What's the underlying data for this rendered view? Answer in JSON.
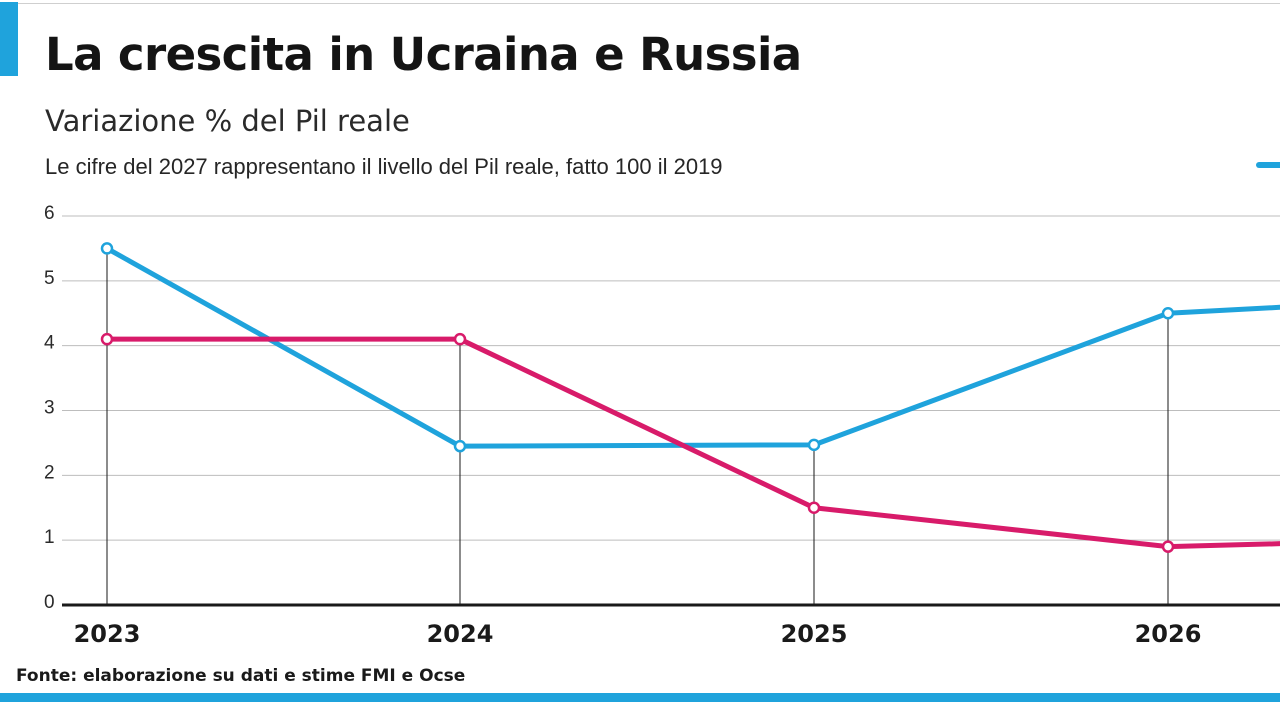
{
  "header": {
    "title": "La crescita in Ucraina e Russia",
    "subtitle": "Variazione % del Pil reale",
    "note": "Le cifre del 2027 rappresentano il livello del Pil reale, fatto 100 il 2019"
  },
  "footer": {
    "source": "Fonte: elaborazione su dati e stime FMI e Ocse"
  },
  "colors": {
    "accent": "#1fa3dc",
    "series_blue": "#1fa3dc",
    "series_magenta": "#d81b6a"
  },
  "chart_data": {
    "type": "line",
    "title": "La crescita in Ucraina e Russia",
    "subtitle": "Variazione % del Pil reale",
    "x": [
      "2023",
      "2024",
      "2025",
      "2026"
    ],
    "y_ticks": [
      "0",
      "1",
      "2",
      "3",
      "4",
      "5",
      "6"
    ],
    "ylim": [
      0,
      6
    ],
    "grid": true,
    "legend": "top-right",
    "series": [
      {
        "color": "#1fa3dc",
        "values": [
          5.5,
          2.45,
          2.47,
          4.5
        ],
        "tail_value": 4.6
      },
      {
        "color": "#d81b6a",
        "values": [
          4.1,
          4.1,
          1.5,
          0.9
        ],
        "tail_value": 0.95
      }
    ]
  }
}
